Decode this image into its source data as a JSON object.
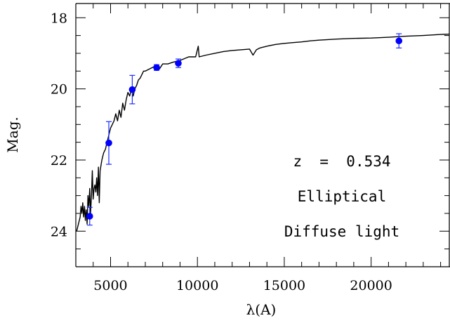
{
  "chart_data": {
    "type": "scatter",
    "title": "",
    "xlabel": "λ(A)",
    "ylabel": "Mag.",
    "xlim": [
      3000,
      24500
    ],
    "ylim": [
      25,
      17.6
    ],
    "y_inverted": true,
    "grid": false,
    "x_major_ticks": [
      5000,
      10000,
      15000,
      20000
    ],
    "x_tick_labels": [
      "5000",
      "10000",
      "15000",
      "20000"
    ],
    "x_minor_step": 1000,
    "y_major_ticks": [
      18,
      20,
      22,
      24
    ],
    "y_tick_labels": [
      "18",
      "20",
      "22",
      "24"
    ],
    "y_minor_step": 0.5,
    "annotations": [
      "z  =  0.534",
      "Elliptical",
      "Diffuse light"
    ],
    "colors": {
      "points": "#0000ff",
      "errorbars": "#1a2cff",
      "spectrum": "#000000"
    },
    "series": [
      {
        "type": "line",
        "x": [
          3050,
          3150,
          3250,
          3300,
          3350,
          3400,
          3450,
          3500,
          3550,
          3600,
          3650,
          3700,
          3750,
          3800,
          3850,
          3900,
          3950,
          4000,
          4050,
          4100,
          4150,
          4200,
          4250,
          4300,
          4350,
          4400,
          4500,
          4600,
          4700,
          4800,
          4900,
          5000,
          5100,
          5200,
          5300,
          5400,
          5500,
          5600,
          5700,
          5800,
          5900,
          6000,
          6100,
          6200,
          6300,
          6400,
          6500,
          6600,
          6700,
          6800,
          6900,
          7000,
          7200,
          7400,
          7600,
          7800,
          8000,
          8300,
          8600,
          9000,
          9500,
          9900,
          10050,
          10100,
          10500,
          11000,
          11500,
          12000,
          12500,
          13000,
          13200,
          13400,
          13600,
          14000,
          14500,
          15000,
          15500,
          16000,
          16500,
          17000,
          18000,
          19000,
          20000,
          21000,
          22000,
          23000,
          24000,
          24500
        ],
        "y": [
          24.0,
          23.8,
          23.6,
          23.3,
          23.5,
          23.2,
          23.6,
          23.3,
          23.7,
          23.4,
          23.8,
          23.0,
          23.3,
          22.8,
          23.5,
          23.0,
          22.3,
          23.1,
          22.8,
          22.7,
          22.9,
          22.5,
          23.0,
          22.2,
          23.2,
          22.3,
          22.0,
          21.8,
          21.7,
          21.5,
          21.3,
          21.1,
          21.0,
          20.9,
          20.7,
          20.9,
          20.6,
          20.8,
          20.4,
          20.6,
          20.3,
          20.1,
          20.2,
          20.0,
          20.2,
          20.0,
          19.9,
          19.75,
          19.7,
          19.6,
          19.5,
          19.5,
          19.45,
          19.4,
          19.35,
          19.45,
          19.3,
          19.3,
          19.25,
          19.2,
          19.1,
          19.1,
          18.8,
          19.1,
          19.05,
          19.0,
          18.95,
          18.92,
          18.9,
          18.88,
          19.05,
          18.9,
          18.85,
          18.8,
          18.75,
          18.72,
          18.7,
          18.68,
          18.65,
          18.63,
          18.6,
          18.58,
          18.57,
          18.55,
          18.52,
          18.5,
          18.47,
          18.46
        ]
      },
      {
        "type": "scatter",
        "x": [
          3800,
          4900,
          6250,
          7650,
          8900,
          21600
        ],
        "y": [
          23.58,
          21.52,
          20.02,
          19.4,
          19.28,
          18.65
        ],
        "yerr": [
          0.25,
          0.6,
          0.4,
          0.08,
          0.12,
          0.2
        ]
      }
    ]
  }
}
